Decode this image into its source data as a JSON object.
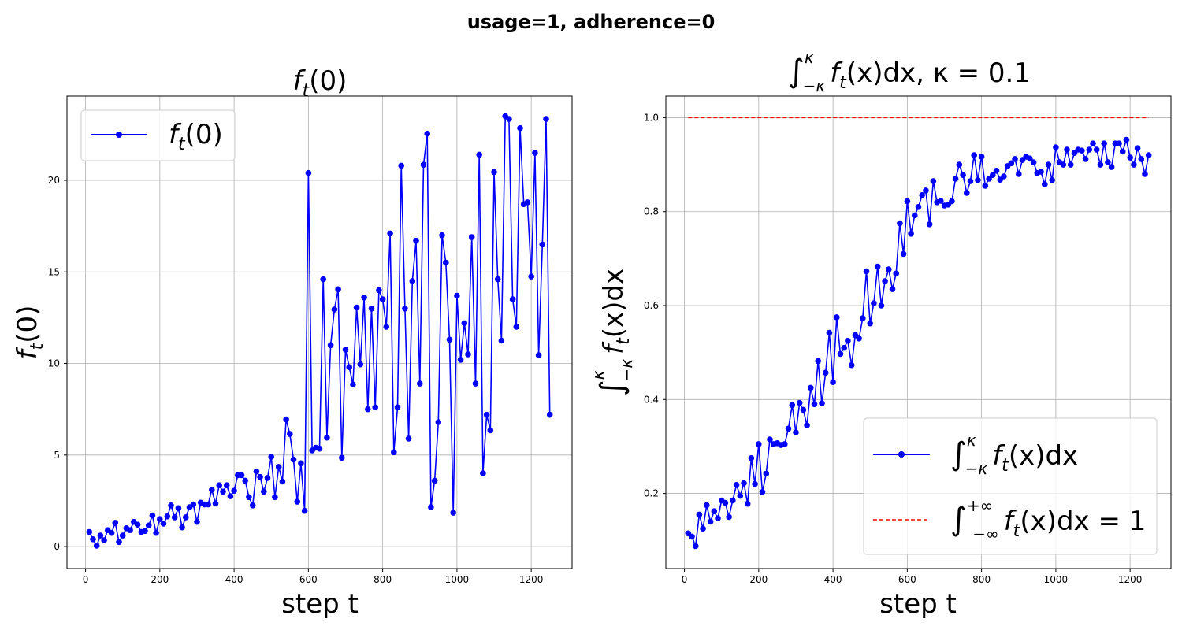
{
  "figure": {
    "suptitle": "usage=1, adherence=0",
    "colors": {
      "series": "#0000ff",
      "reference": "#ff0000",
      "grid": "#b0b0b0",
      "legend_border": "#cccccc"
    }
  },
  "chart_data": [
    {
      "type": "line",
      "title": "f_t(0)",
      "xlabel": "step t",
      "ylabel": "f_t(0)",
      "xlim": [
        -50,
        1310
      ],
      "ylim": [
        -1.2,
        24.6
      ],
      "xticks": [
        0,
        200,
        400,
        600,
        800,
        1000,
        1200
      ],
      "yticks": [
        0,
        5,
        10,
        15,
        20
      ],
      "grid": true,
      "legend_position": "upper-left",
      "series": [
        {
          "name": "f_t(0)",
          "style": "line-marker",
          "color": "#0000ff",
          "x": [
            10,
            20,
            30,
            40,
            50,
            60,
            70,
            80,
            90,
            100,
            110,
            120,
            130,
            140,
            150,
            160,
            170,
            180,
            190,
            200,
            210,
            220,
            230,
            240,
            250,
            260,
            270,
            280,
            290,
            300,
            310,
            320,
            330,
            340,
            350,
            360,
            370,
            380,
            390,
            400,
            410,
            420,
            430,
            440,
            450,
            460,
            470,
            480,
            490,
            500,
            510,
            520,
            530,
            540,
            550,
            560,
            570,
            580,
            590,
            600,
            610,
            620,
            630,
            640,
            650,
            660,
            670,
            680,
            690,
            700,
            710,
            720,
            730,
            740,
            750,
            760,
            770,
            780,
            790,
            800,
            810,
            820,
            830,
            840,
            850,
            860,
            870,
            880,
            890,
            900,
            910,
            920,
            930,
            940,
            950,
            960,
            970,
            980,
            990,
            1000,
            1010,
            1020,
            1030,
            1040,
            1050,
            1060,
            1070,
            1080,
            1090,
            1100,
            1110,
            1120,
            1130,
            1140,
            1150,
            1160,
            1170,
            1180,
            1190,
            1200,
            1210,
            1220,
            1230,
            1240,
            1250
          ],
          "y": [
            0.8,
            0.4,
            0.05,
            0.6,
            0.35,
            0.9,
            0.75,
            1.3,
            0.25,
            0.6,
            1.0,
            0.9,
            1.35,
            1.2,
            0.8,
            0.85,
            1.15,
            1.7,
            0.75,
            1.5,
            1.25,
            1.65,
            2.25,
            1.6,
            2.1,
            1.05,
            1.6,
            2.15,
            2.3,
            1.35,
            2.4,
            2.3,
            2.3,
            3.1,
            2.35,
            3.35,
            3.0,
            3.35,
            2.75,
            3.05,
            3.9,
            3.9,
            3.6,
            2.7,
            2.25,
            4.1,
            3.8,
            3.0,
            3.75,
            4.9,
            2.7,
            4.35,
            3.55,
            6.95,
            6.15,
            4.75,
            2.45,
            4.55,
            1.95,
            20.4,
            5.25,
            5.4,
            5.35,
            14.6,
            5.95,
            11.0,
            12.95,
            14.05,
            4.85,
            10.75,
            9.8,
            8.85,
            13.05,
            9.95,
            13.6,
            7.5,
            13.0,
            7.6,
            14.0,
            13.5,
            12.0,
            17.1,
            5.15,
            7.6,
            20.8,
            13.0,
            5.9,
            14.5,
            16.7,
            8.9,
            20.85,
            22.55,
            2.15,
            3.6,
            6.8,
            17.0,
            15.5,
            11.3,
            1.85,
            13.7,
            10.2,
            12.2,
            10.5,
            16.9,
            8.9,
            21.4,
            4.0,
            7.2,
            6.35,
            20.45,
            14.6,
            11.25,
            23.5,
            23.35,
            13.5,
            12.0,
            22.85,
            18.7,
            18.8,
            14.75,
            21.5,
            10.45,
            16.5,
            23.35,
            7.2
          ]
        }
      ]
    },
    {
      "type": "line",
      "title_parts": {
        "integral": "∫",
        "upper": "κ",
        "lower": "−κ",
        "body": "f",
        "body_sub": "t",
        "body_rest": "(x)dx,  κ =  0.1"
      },
      "xlabel": "step t",
      "ylabel": "∫−κκft(x)dx",
      "xlim": [
        -50,
        1310
      ],
      "ylim": [
        0.04,
        1.046
      ],
      "xticks": [
        0,
        200,
        400,
        600,
        800,
        1000,
        1200
      ],
      "yticks": [
        0.2,
        0.4,
        0.6,
        0.8,
        1.0
      ],
      "ytick_labels": [
        "0.2",
        "0.4",
        "0.6",
        "0.8",
        "1.0"
      ],
      "grid": true,
      "legend_position": "lower-right",
      "series": [
        {
          "name": "∫−κκft(x)dx",
          "style": "line-marker",
          "color": "#0000ff",
          "x": [
            10,
            20,
            30,
            40,
            50,
            60,
            70,
            80,
            90,
            100,
            110,
            120,
            130,
            140,
            150,
            160,
            170,
            180,
            190,
            200,
            210,
            220,
            230,
            240,
            250,
            260,
            270,
            280,
            290,
            300,
            310,
            320,
            330,
            340,
            350,
            360,
            370,
            380,
            390,
            400,
            410,
            420,
            430,
            440,
            450,
            460,
            470,
            480,
            490,
            500,
            510,
            520,
            530,
            540,
            550,
            560,
            570,
            580,
            590,
            600,
            610,
            620,
            630,
            640,
            650,
            660,
            670,
            680,
            690,
            700,
            710,
            720,
            730,
            740,
            750,
            760,
            770,
            780,
            790,
            800,
            810,
            820,
            830,
            840,
            850,
            860,
            870,
            880,
            890,
            900,
            910,
            920,
            930,
            940,
            950,
            960,
            970,
            980,
            990,
            1000,
            1010,
            1020,
            1030,
            1040,
            1050,
            1060,
            1070,
            1080,
            1090,
            1100,
            1110,
            1120,
            1130,
            1140,
            1150,
            1160,
            1170,
            1180,
            1190,
            1200,
            1210,
            1220,
            1230,
            1240,
            1250
          ],
          "y": [
            0.115,
            0.108,
            0.088,
            0.155,
            0.125,
            0.175,
            0.14,
            0.162,
            0.147,
            0.185,
            0.18,
            0.15,
            0.185,
            0.218,
            0.195,
            0.222,
            0.178,
            0.275,
            0.22,
            0.305,
            0.203,
            0.242,
            0.315,
            0.305,
            0.307,
            0.303,
            0.305,
            0.338,
            0.388,
            0.33,
            0.393,
            0.378,
            0.345,
            0.425,
            0.39,
            0.482,
            0.392,
            0.457,
            0.542,
            0.437,
            0.575,
            0.497,
            0.51,
            0.525,
            0.473,
            0.537,
            0.53,
            0.573,
            0.673,
            0.562,
            0.605,
            0.683,
            0.6,
            0.652,
            0.677,
            0.635,
            0.668,
            0.775,
            0.71,
            0.822,
            0.753,
            0.792,
            0.81,
            0.835,
            0.845,
            0.773,
            0.865,
            0.82,
            0.823,
            0.813,
            0.815,
            0.822,
            0.87,
            0.9,
            0.878,
            0.84,
            0.865,
            0.92,
            0.867,
            0.917,
            0.855,
            0.87,
            0.878,
            0.887,
            0.868,
            0.875,
            0.897,
            0.903,
            0.912,
            0.88,
            0.91,
            0.917,
            0.913,
            0.905,
            0.882,
            0.885,
            0.858,
            0.9,
            0.867,
            0.937,
            0.905,
            0.9,
            0.932,
            0.9,
            0.925,
            0.932,
            0.93,
            0.912,
            0.932,
            0.945,
            0.932,
            0.9,
            0.945,
            0.905,
            0.895,
            0.945,
            0.945,
            0.928,
            0.953,
            0.915,
            0.9,
            0.935,
            0.912,
            0.88,
            0.92
          ]
        },
        {
          "name": "∫−∞+∞ft(x)dx = 1",
          "style": "dashed",
          "color": "#ff0000",
          "x": [
            10,
            1250
          ],
          "y": [
            1.0,
            1.0
          ]
        }
      ]
    }
  ]
}
